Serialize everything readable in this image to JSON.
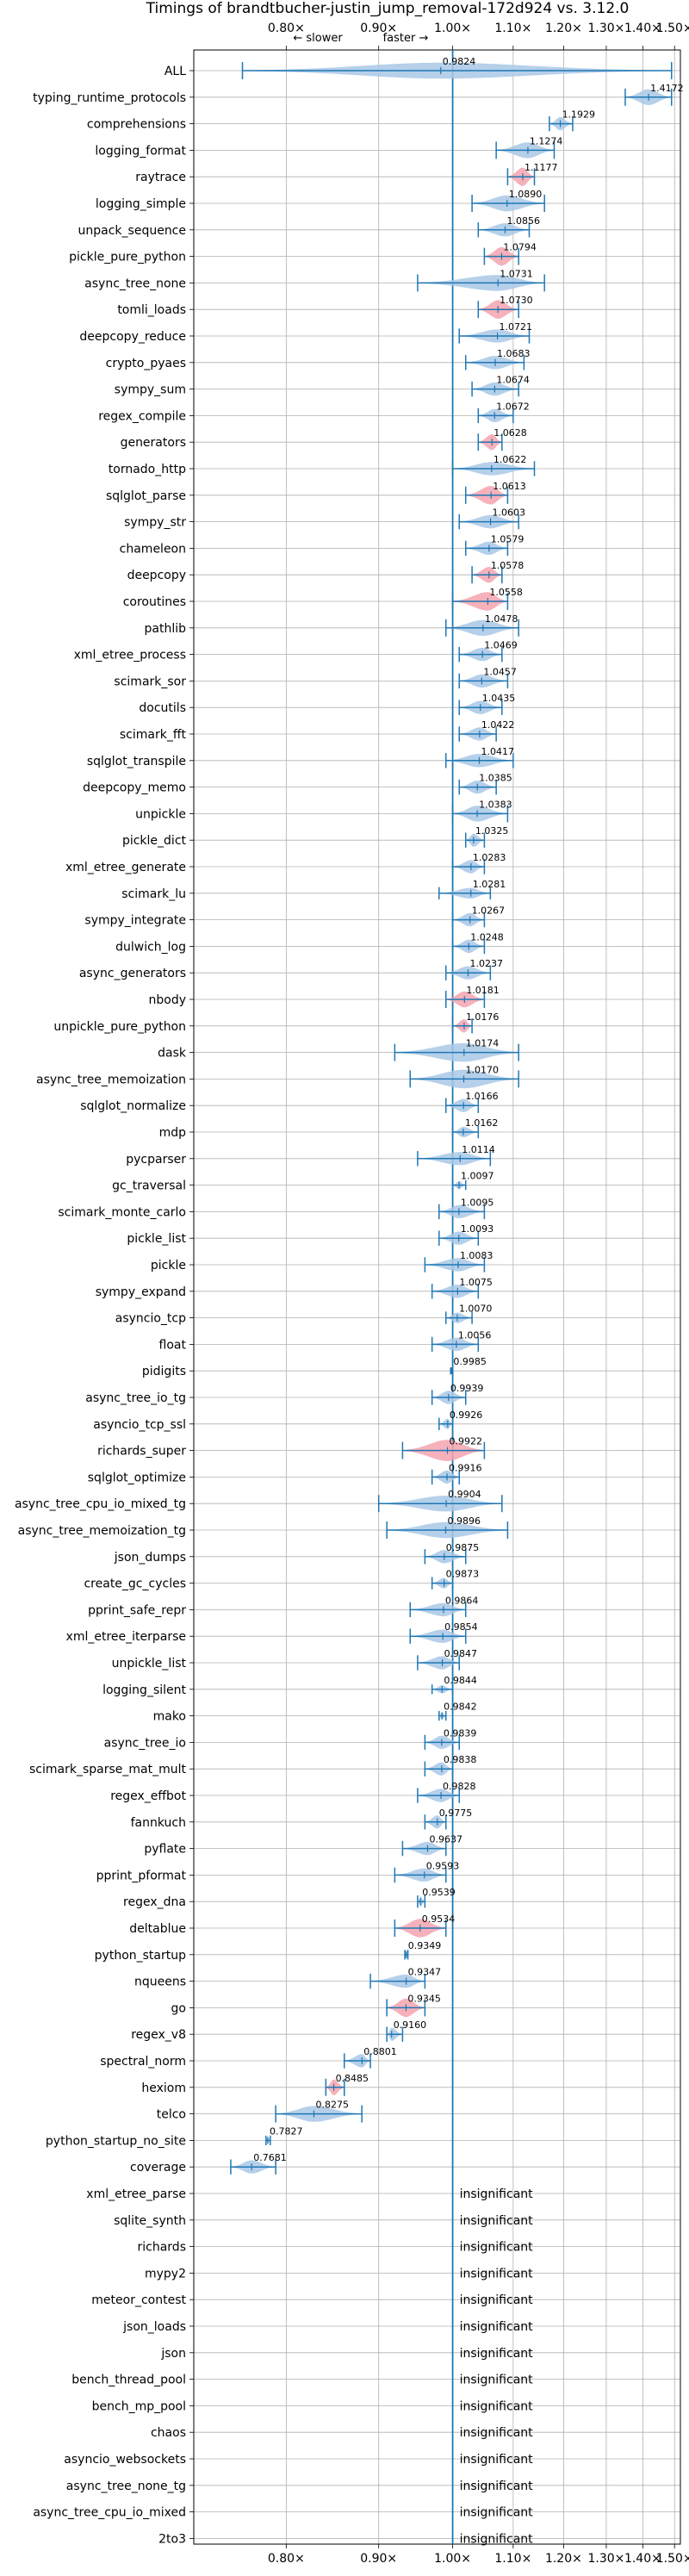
{
  "chart_data": {
    "type": "violin",
    "title": "Timings of brandtbucher-justin_jump_removal-172d924 vs. 3.12.0",
    "direction_labels": {
      "slower": "← slower",
      "faster": "faster →"
    },
    "xscale": "reciprocal",
    "xlim": [
      0.72,
      1.52
    ],
    "xticks": [
      "0.80×",
      "0.90×",
      "1.00×",
      "1.10×",
      "1.20×",
      "1.30×",
      "1.40×",
      "1.50×"
    ],
    "xtick_values": [
      0.8,
      0.9,
      1.0,
      1.1,
      1.2,
      1.3,
      1.4,
      1.5
    ],
    "grid": true,
    "colors": {
      "normal": "#a9c8e6",
      "highlight": "#f4a3ae",
      "line": "#1f77b4",
      "reference": "#1f77b4"
    },
    "insignificant_text": "insignificant",
    "benchmarks": [
      {
        "name": "ALL",
        "value": 0.9824,
        "label": "0.9824",
        "lo": 0.76,
        "hi": 1.49,
        "width": 0.6,
        "hl": false
      },
      {
        "name": "typing_runtime_protocols",
        "value": 1.4172,
        "label": "1.4172",
        "lo": 1.35,
        "hi": 1.49,
        "width": 0.6,
        "hl": false
      },
      {
        "name": "comprehensions",
        "value": 1.1929,
        "label": "1.1929",
        "lo": 1.17,
        "hi": 1.22,
        "width": 0.5,
        "hl": false
      },
      {
        "name": "logging_format",
        "value": 1.1274,
        "label": "1.1274",
        "lo": 1.07,
        "hi": 1.18,
        "width": 0.6,
        "hl": false
      },
      {
        "name": "raytrace",
        "value": 1.1177,
        "label": "1.1177",
        "lo": 1.09,
        "hi": 1.14,
        "width": 0.7,
        "hl": true
      },
      {
        "name": "logging_simple",
        "value": 1.089,
        "label": "1.0890",
        "lo": 1.03,
        "hi": 1.16,
        "width": 0.6,
        "hl": false
      },
      {
        "name": "unpack_sequence",
        "value": 1.0856,
        "label": "1.0856",
        "lo": 1.04,
        "hi": 1.13,
        "width": 0.5,
        "hl": false
      },
      {
        "name": "pickle_pure_python",
        "value": 1.0794,
        "label": "1.0794",
        "lo": 1.05,
        "hi": 1.11,
        "width": 0.7,
        "hl": true
      },
      {
        "name": "async_tree_none",
        "value": 1.0731,
        "label": "1.0731",
        "lo": 0.95,
        "hi": 1.16,
        "width": 0.6,
        "hl": false
      },
      {
        "name": "tomli_loads",
        "value": 1.073,
        "label": "1.0730",
        "lo": 1.04,
        "hi": 1.11,
        "width": 0.7,
        "hl": true
      },
      {
        "name": "deepcopy_reduce",
        "value": 1.0721,
        "label": "1.0721",
        "lo": 1.01,
        "hi": 1.13,
        "width": 0.5,
        "hl": false
      },
      {
        "name": "crypto_pyaes",
        "value": 1.0683,
        "label": "1.0683",
        "lo": 1.02,
        "hi": 1.12,
        "width": 0.5,
        "hl": false
      },
      {
        "name": "sympy_sum",
        "value": 1.0674,
        "label": "1.0674",
        "lo": 1.03,
        "hi": 1.11,
        "width": 0.5,
        "hl": false
      },
      {
        "name": "regex_compile",
        "value": 1.0672,
        "label": "1.0672",
        "lo": 1.04,
        "hi": 1.1,
        "width": 0.5,
        "hl": false
      },
      {
        "name": "generators",
        "value": 1.0628,
        "label": "1.0628",
        "lo": 1.04,
        "hi": 1.08,
        "width": 0.6,
        "hl": true
      },
      {
        "name": "tornado_http",
        "value": 1.0622,
        "label": "1.0622",
        "lo": 1.0,
        "hi": 1.14,
        "width": 0.5,
        "hl": false
      },
      {
        "name": "sqlglot_parse",
        "value": 1.0613,
        "label": "1.0613",
        "lo": 1.02,
        "hi": 1.09,
        "width": 0.7,
        "hl": true
      },
      {
        "name": "sympy_str",
        "value": 1.0603,
        "label": "1.0603",
        "lo": 1.01,
        "hi": 1.11,
        "width": 0.5,
        "hl": false
      },
      {
        "name": "chameleon",
        "value": 1.0579,
        "label": "1.0579",
        "lo": 1.02,
        "hi": 1.09,
        "width": 0.5,
        "hl": false
      },
      {
        "name": "deepcopy",
        "value": 1.0578,
        "label": "1.0578",
        "lo": 1.03,
        "hi": 1.08,
        "width": 0.6,
        "hl": true
      },
      {
        "name": "coroutines",
        "value": 1.0558,
        "label": "1.0558",
        "lo": 1.0,
        "hi": 1.09,
        "width": 0.7,
        "hl": true
      },
      {
        "name": "pathlib",
        "value": 1.0478,
        "label": "1.0478",
        "lo": 0.99,
        "hi": 1.11,
        "width": 0.6,
        "hl": false
      },
      {
        "name": "xml_etree_process",
        "value": 1.0469,
        "label": "1.0469",
        "lo": 1.01,
        "hi": 1.08,
        "width": 0.5,
        "hl": false
      },
      {
        "name": "scimark_sor",
        "value": 1.0457,
        "label": "1.0457",
        "lo": 1.01,
        "hi": 1.09,
        "width": 0.5,
        "hl": false
      },
      {
        "name": "docutils",
        "value": 1.0435,
        "label": "1.0435",
        "lo": 1.01,
        "hi": 1.08,
        "width": 0.5,
        "hl": false
      },
      {
        "name": "scimark_fft",
        "value": 1.0422,
        "label": "1.0422",
        "lo": 1.01,
        "hi": 1.07,
        "width": 0.5,
        "hl": false
      },
      {
        "name": "sqlglot_transpile",
        "value": 1.0417,
        "label": "1.0417",
        "lo": 0.99,
        "hi": 1.1,
        "width": 0.5,
        "hl": false
      },
      {
        "name": "deepcopy_memo",
        "value": 1.0385,
        "label": "1.0385",
        "lo": 1.01,
        "hi": 1.07,
        "width": 0.5,
        "hl": false
      },
      {
        "name": "unpickle",
        "value": 1.0383,
        "label": "1.0383",
        "lo": 1.0,
        "hi": 1.09,
        "width": 0.6,
        "hl": false
      },
      {
        "name": "pickle_dict",
        "value": 1.0325,
        "label": "1.0325",
        "lo": 1.02,
        "hi": 1.05,
        "width": 0.5,
        "hl": false
      },
      {
        "name": "xml_etree_generate",
        "value": 1.0283,
        "label": "1.0283",
        "lo": 1.0,
        "hi": 1.05,
        "width": 0.5,
        "hl": false
      },
      {
        "name": "scimark_lu",
        "value": 1.0281,
        "label": "1.0281",
        "lo": 0.98,
        "hi": 1.06,
        "width": 0.4,
        "hl": false
      },
      {
        "name": "sympy_integrate",
        "value": 1.0267,
        "label": "1.0267",
        "lo": 1.0,
        "hi": 1.05,
        "width": 0.5,
        "hl": false
      },
      {
        "name": "dulwich_log",
        "value": 1.0248,
        "label": "1.0248",
        "lo": 1.0,
        "hi": 1.05,
        "width": 0.5,
        "hl": false
      },
      {
        "name": "async_generators",
        "value": 1.0237,
        "label": "1.0237",
        "lo": 0.99,
        "hi": 1.06,
        "width": 0.5,
        "hl": false
      },
      {
        "name": "nbody",
        "value": 1.0181,
        "label": "1.0181",
        "lo": 0.99,
        "hi": 1.05,
        "width": 0.6,
        "hl": true
      },
      {
        "name": "unpickle_pure_python",
        "value": 1.0176,
        "label": "1.0176",
        "lo": 1.0,
        "hi": 1.03,
        "width": 0.5,
        "hl": true
      },
      {
        "name": "dask",
        "value": 1.0174,
        "label": "1.0174",
        "lo": 0.92,
        "hi": 1.11,
        "width": 0.7,
        "hl": false
      },
      {
        "name": "async_tree_memoization",
        "value": 1.017,
        "label": "1.0170",
        "lo": 0.94,
        "hi": 1.11,
        "width": 0.7,
        "hl": false
      },
      {
        "name": "sqlglot_normalize",
        "value": 1.0166,
        "label": "1.0166",
        "lo": 0.99,
        "hi": 1.04,
        "width": 0.5,
        "hl": false
      },
      {
        "name": "mdp",
        "value": 1.0162,
        "label": "1.0162",
        "lo": 1.0,
        "hi": 1.04,
        "width": 0.4,
        "hl": false
      },
      {
        "name": "pycparser",
        "value": 1.0114,
        "label": "1.0114",
        "lo": 0.95,
        "hi": 1.06,
        "width": 0.5,
        "hl": false
      },
      {
        "name": "gc_traversal",
        "value": 1.0097,
        "label": "1.0097",
        "lo": 1.0,
        "hi": 1.02,
        "width": 0.3,
        "hl": false
      },
      {
        "name": "scimark_monte_carlo",
        "value": 1.0095,
        "label": "1.0095",
        "lo": 0.98,
        "hi": 1.05,
        "width": 0.5,
        "hl": false
      },
      {
        "name": "pickle_list",
        "value": 1.0093,
        "label": "1.0093",
        "lo": 0.98,
        "hi": 1.04,
        "width": 0.5,
        "hl": false
      },
      {
        "name": "pickle",
        "value": 1.0083,
        "label": "1.0083",
        "lo": 0.96,
        "hi": 1.05,
        "width": 0.5,
        "hl": false
      },
      {
        "name": "sympy_expand",
        "value": 1.0075,
        "label": "1.0075",
        "lo": 0.97,
        "hi": 1.04,
        "width": 0.5,
        "hl": false
      },
      {
        "name": "asyncio_tcp",
        "value": 1.007,
        "label": "1.0070",
        "lo": 0.99,
        "hi": 1.03,
        "width": 0.4,
        "hl": false
      },
      {
        "name": "float",
        "value": 1.0056,
        "label": "1.0056",
        "lo": 0.97,
        "hi": 1.04,
        "width": 0.5,
        "hl": false
      },
      {
        "name": "pidigits",
        "value": 0.9985,
        "label": "0.9985",
        "lo": 0.997,
        "hi": 1.0,
        "width": 0.2,
        "hl": false
      },
      {
        "name": "async_tree_io_tg",
        "value": 0.9939,
        "label": "0.9939",
        "lo": 0.97,
        "hi": 1.02,
        "width": 0.5,
        "hl": false
      },
      {
        "name": "asyncio_tcp_ssl",
        "value": 0.9926,
        "label": "0.9926",
        "lo": 0.98,
        "hi": 1.0,
        "width": 0.4,
        "hl": false
      },
      {
        "name": "richards_super",
        "value": 0.9922,
        "label": "0.9922",
        "lo": 0.93,
        "hi": 1.05,
        "width": 0.8,
        "hl": true
      },
      {
        "name": "sqlglot_optimize",
        "value": 0.9916,
        "label": "0.9916",
        "lo": 0.97,
        "hi": 1.01,
        "width": 0.5,
        "hl": false
      },
      {
        "name": "async_tree_cpu_io_mixed_tg",
        "value": 0.9904,
        "label": "0.9904",
        "lo": 0.9,
        "hi": 1.08,
        "width": 0.6,
        "hl": false
      },
      {
        "name": "async_tree_memoization_tg",
        "value": 0.9896,
        "label": "0.9896",
        "lo": 0.91,
        "hi": 1.09,
        "width": 0.6,
        "hl": false
      },
      {
        "name": "json_dumps",
        "value": 0.9875,
        "label": "0.9875",
        "lo": 0.96,
        "hi": 1.02,
        "width": 0.5,
        "hl": false
      },
      {
        "name": "create_gc_cycles",
        "value": 0.9873,
        "label": "0.9873",
        "lo": 0.97,
        "hi": 1.0,
        "width": 0.4,
        "hl": false
      },
      {
        "name": "pprint_safe_repr",
        "value": 0.9864,
        "label": "0.9864",
        "lo": 0.94,
        "hi": 1.02,
        "width": 0.5,
        "hl": false
      },
      {
        "name": "xml_etree_iterparse",
        "value": 0.9854,
        "label": "0.9854",
        "lo": 0.94,
        "hi": 1.02,
        "width": 0.5,
        "hl": false
      },
      {
        "name": "unpickle_list",
        "value": 0.9847,
        "label": "0.9847",
        "lo": 0.95,
        "hi": 1.01,
        "width": 0.5,
        "hl": false
      },
      {
        "name": "logging_silent",
        "value": 0.9844,
        "label": "0.9844",
        "lo": 0.97,
        "hi": 1.0,
        "width": 0.3,
        "hl": false
      },
      {
        "name": "mako",
        "value": 0.9842,
        "label": "0.9842",
        "lo": 0.98,
        "hi": 0.99,
        "width": 0.3,
        "hl": false
      },
      {
        "name": "async_tree_io",
        "value": 0.9839,
        "label": "0.9839",
        "lo": 0.96,
        "hi": 1.01,
        "width": 0.5,
        "hl": false
      },
      {
        "name": "scimark_sparse_mat_mult",
        "value": 0.9838,
        "label": "0.9838",
        "lo": 0.96,
        "hi": 1.0,
        "width": 0.5,
        "hl": false
      },
      {
        "name": "regex_effbot",
        "value": 0.9828,
        "label": "0.9828",
        "lo": 0.95,
        "hi": 1.01,
        "width": 0.5,
        "hl": false
      },
      {
        "name": "fannkuch",
        "value": 0.9775,
        "label": "0.9775",
        "lo": 0.96,
        "hi": 0.99,
        "width": 0.5,
        "hl": false
      },
      {
        "name": "pyflate",
        "value": 0.9637,
        "label": "0.9637",
        "lo": 0.93,
        "hi": 0.99,
        "width": 0.5,
        "hl": false
      },
      {
        "name": "pprint_pformat",
        "value": 0.9593,
        "label": "0.9593",
        "lo": 0.92,
        "hi": 0.99,
        "width": 0.5,
        "hl": false
      },
      {
        "name": "regex_dna",
        "value": 0.9539,
        "label": "0.9539",
        "lo": 0.95,
        "hi": 0.96,
        "width": 0.4,
        "hl": false
      },
      {
        "name": "deltablue",
        "value": 0.9534,
        "label": "0.9534",
        "lo": 0.92,
        "hi": 0.99,
        "width": 0.7,
        "hl": true
      },
      {
        "name": "python_startup",
        "value": 0.9349,
        "label": "0.9349",
        "lo": 0.933,
        "hi": 0.937,
        "width": 0.3,
        "hl": false
      },
      {
        "name": "nqueens",
        "value": 0.9347,
        "label": "0.9347",
        "lo": 0.89,
        "hi": 0.96,
        "width": 0.5,
        "hl": false
      },
      {
        "name": "go",
        "value": 0.9345,
        "label": "0.9345",
        "lo": 0.91,
        "hi": 0.96,
        "width": 0.7,
        "hl": true
      },
      {
        "name": "regex_v8",
        "value": 0.916,
        "label": "0.9160",
        "lo": 0.91,
        "hi": 0.93,
        "width": 0.5,
        "hl": false
      },
      {
        "name": "spectral_norm",
        "value": 0.8801,
        "label": "0.8801",
        "lo": 0.86,
        "hi": 0.89,
        "width": 0.5,
        "hl": false
      },
      {
        "name": "hexiom",
        "value": 0.8485,
        "label": "0.8485",
        "lo": 0.84,
        "hi": 0.86,
        "width": 0.6,
        "hl": true
      },
      {
        "name": "telco",
        "value": 0.8275,
        "label": "0.8275",
        "lo": 0.79,
        "hi": 0.88,
        "width": 0.6,
        "hl": false
      },
      {
        "name": "python_startup_no_site",
        "value": 0.7827,
        "label": "0.7827",
        "lo": 0.781,
        "hi": 0.785,
        "width": 0.3,
        "hl": false
      },
      {
        "name": "coverage",
        "value": 0.7681,
        "label": "0.7681",
        "lo": 0.75,
        "hi": 0.79,
        "width": 0.5,
        "hl": false
      }
    ],
    "insignificant": [
      "xml_etree_parse",
      "sqlite_synth",
      "richards",
      "mypy2",
      "meteor_contest",
      "json_loads",
      "json",
      "bench_thread_pool",
      "bench_mp_pool",
      "chaos",
      "asyncio_websockets",
      "async_tree_none_tg",
      "async_tree_cpu_io_mixed",
      "2to3"
    ]
  }
}
